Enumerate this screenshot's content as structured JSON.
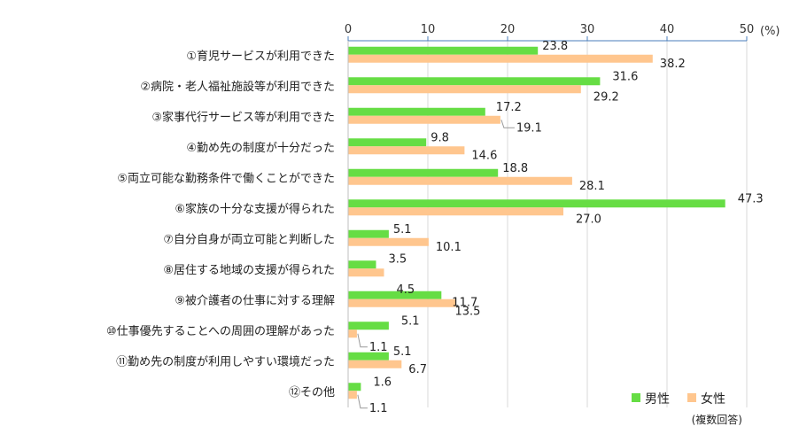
{
  "chart_data": {
    "type": "bar",
    "orientation": "horizontal",
    "unit": "(%)",
    "note": "(複数回答)",
    "xlim": [
      0,
      50
    ],
    "xticks": [
      0,
      10,
      20,
      30,
      40,
      50
    ],
    "grid": true,
    "legend_position": "bottom-right",
    "categories": [
      "①育児サービスが利用できた",
      "②病院・老人福祉施設等が利用できた",
      "③家事代行サービス等が利用できた",
      "④勤め先の制度が十分だった",
      "⑤両立可能な勤務条件で働くことができた",
      "⑥家族の十分な支援が得られた",
      "⑦自分自身が両立可能と判断した",
      "⑧居住する地域の支援が得られた",
      "⑨被介護者の仕事に対する理解",
      "⑩仕事優先することへの周囲の理解があった",
      "⑪勤め先の制度が利用しやすい環境だった",
      "⑫その他"
    ],
    "series": [
      {
        "name": "男性",
        "color": "#66dd44",
        "values": [
          23.8,
          31.6,
          17.2,
          9.8,
          18.8,
          47.3,
          5.1,
          3.5,
          11.7,
          5.1,
          5.1,
          1.6
        ]
      },
      {
        "name": "女性",
        "color": "#ffc68e",
        "values": [
          38.2,
          29.2,
          19.1,
          14.6,
          28.1,
          27.0,
          10.1,
          4.5,
          13.5,
          1.1,
          6.7,
          1.1
        ]
      }
    ],
    "data_labels": [
      [
        "23.8",
        "31.6",
        "17.2",
        "9.8",
        "18.8",
        "47.3",
        "5.1",
        "3.5",
        "11.7",
        "5.1",
        "5.1",
        "1.6"
      ],
      [
        "38.2",
        "29.2",
        "19.1",
        "14.6",
        "28.1",
        "27.0",
        "10.1",
        "4.5",
        "13.5",
        "1.1",
        "6.7",
        "1.1"
      ]
    ]
  }
}
